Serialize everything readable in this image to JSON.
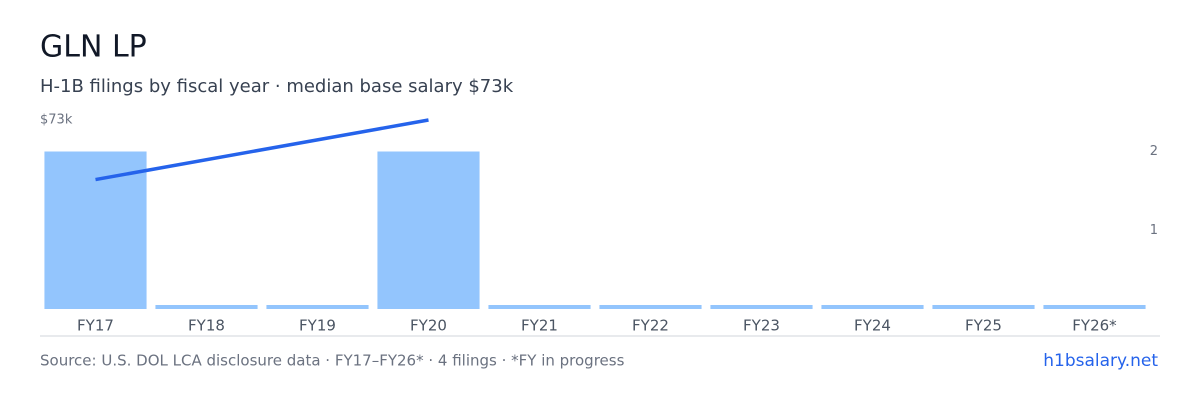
{
  "chart_data": {
    "type": "bar",
    "title": "GLN LP",
    "subtitle": "H-1B filings by fiscal year · median base salary $73k",
    "categories": [
      "FY17",
      "FY18",
      "FY19",
      "FY20",
      "FY21",
      "FY22",
      "FY23",
      "FY24",
      "FY25",
      "FY26*"
    ],
    "values": [
      2,
      0,
      0,
      2,
      0,
      0,
      0,
      0,
      0,
      0
    ],
    "color": "#93c5fd",
    "y2lim": [
      0,
      2.4
    ],
    "y2ticks": [
      1,
      2
    ],
    "line": {
      "categories": [
        "FY17",
        "FY20"
      ],
      "values": [
        50000,
        73000
      ],
      "color": "#2563eb"
    },
    "ylim": [
      0,
      73000
    ],
    "yticks": [
      {
        "value": 73000,
        "label": "$73k"
      }
    ],
    "source": "Source: U.S. DOL LCA disclosure data · FY17–FY26* · 4 filings · *FY in progress",
    "brand": "h1bsalary.net"
  }
}
